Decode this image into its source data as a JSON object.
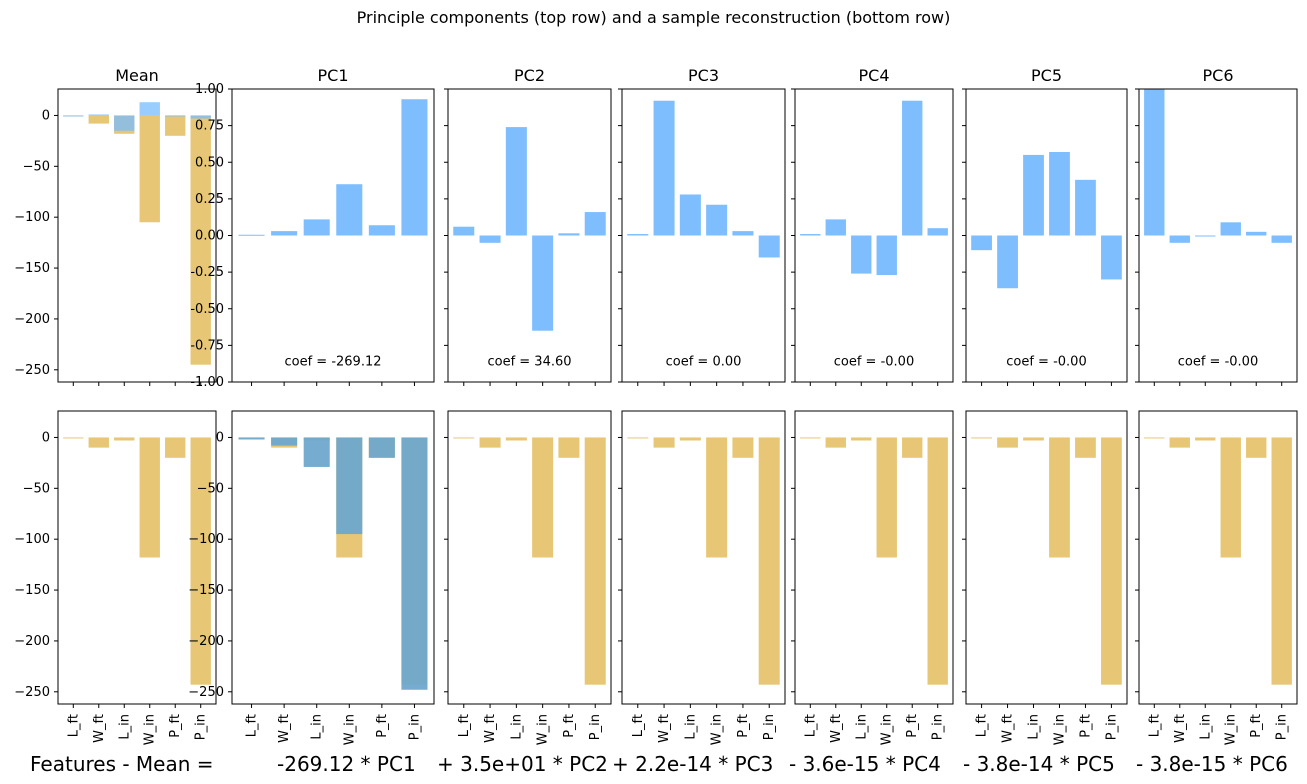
{
  "figure": {
    "suptitle": "Principle components (top row) and a sample reconstruction (bottom row)",
    "colors": {
      "pc_bar": "#77bbff",
      "mean_bar": "#e6c46e",
      "recon_bar": "#6fa8cc",
      "overlap_bar": "#a0a56c"
    }
  },
  "chart_data": [
    {
      "type": "bar",
      "title": "Mean",
      "categories": [
        "L_ft",
        "W_ft",
        "L_in",
        "W_in",
        "P_ft",
        "P_in"
      ],
      "ylim": [
        -262,
        26
      ],
      "yticks": [
        0,
        -50,
        -100,
        -150,
        -200,
        -250
      ],
      "series": [
        {
          "values": [
            -1,
            -8,
            -18,
            -105,
            -20,
            -245
          ]
        },
        {
          "values": [
            -1,
            1,
            -15,
            13,
            0,
            -3
          ]
        }
      ]
    },
    {
      "type": "bar",
      "title": "PC1",
      "categories": [
        "L_ft",
        "W_ft",
        "L_in",
        "W_in",
        "P_ft",
        "P_in"
      ],
      "ylim": [
        -1.0,
        1.0
      ],
      "yticks": [
        1.0,
        0.75,
        0.5,
        0.25,
        0.0,
        -0.25,
        -0.5,
        -0.75,
        -1.0
      ],
      "values": [
        0.005,
        0.03,
        0.11,
        0.35,
        0.07,
        0.93
      ],
      "annotation": "coef = -269.12"
    },
    {
      "type": "bar",
      "title": "PC2",
      "categories": [
        "L_ft",
        "W_ft",
        "L_in",
        "W_in",
        "P_ft",
        "P_in"
      ],
      "ylim": [
        -1.0,
        1.0
      ],
      "values": [
        0.06,
        -0.05,
        0.74,
        -0.65,
        0.015,
        0.16
      ],
      "annotation": "coef = 34.60"
    },
    {
      "type": "bar",
      "title": "PC3",
      "categories": [
        "L_ft",
        "W_ft",
        "L_in",
        "W_in",
        "P_ft",
        "P_in"
      ],
      "ylim": [
        -1.0,
        1.0
      ],
      "values": [
        0.01,
        0.92,
        0.28,
        0.21,
        0.03,
        -0.15
      ],
      "annotation": "coef = 0.00"
    },
    {
      "type": "bar",
      "title": "PC4",
      "categories": [
        "L_ft",
        "W_ft",
        "L_in",
        "W_in",
        "P_ft",
        "P_in"
      ],
      "ylim": [
        -1.0,
        1.0
      ],
      "values": [
        0.01,
        0.11,
        -0.26,
        -0.27,
        0.92,
        0.05
      ],
      "annotation": "coef = -0.00"
    },
    {
      "type": "bar",
      "title": "PC5",
      "categories": [
        "L_ft",
        "W_ft",
        "L_in",
        "W_in",
        "P_ft",
        "P_in"
      ],
      "ylim": [
        -1.0,
        1.0
      ],
      "values": [
        -0.1,
        -0.36,
        0.55,
        0.57,
        0.38,
        -0.3
      ],
      "annotation": "coef = -0.00"
    },
    {
      "type": "bar",
      "title": "PC6",
      "categories": [
        "L_ft",
        "W_ft",
        "L_in",
        "W_in",
        "P_ft",
        "P_in"
      ],
      "ylim": [
        -1.0,
        1.0
      ],
      "values": [
        1.0,
        -0.05,
        -0.005,
        0.09,
        0.025,
        -0.05
      ],
      "annotation": "coef = -0.00"
    },
    {
      "type": "bar",
      "title": "",
      "categories": [
        "L_ft",
        "W_ft",
        "L_in",
        "W_in",
        "P_ft",
        "P_in"
      ],
      "ylim": [
        -262,
        26
      ],
      "series": [
        {
          "values": [
            0,
            -10,
            -3,
            -118,
            -20,
            -243
          ]
        }
      ]
    },
    {
      "type": "bar",
      "title": "",
      "categories": [
        "L_ft",
        "W_ft",
        "L_in",
        "W_in",
        "P_ft",
        "P_in"
      ],
      "ylim": [
        -262,
        26
      ],
      "series": [
        {
          "values": [
            0,
            -10,
            -3,
            -118,
            -20,
            -243
          ]
        },
        {
          "values": [
            -2,
            -8,
            -29,
            -95,
            -20,
            -248
          ]
        }
      ]
    },
    {
      "type": "bar",
      "title": "",
      "categories": [
        "L_ft",
        "W_ft",
        "L_in",
        "W_in",
        "P_ft",
        "P_in"
      ],
      "ylim": [
        -262,
        26
      ],
      "series": [
        {
          "values": [
            0,
            -10,
            -3,
            -118,
            -20,
            -243
          ]
        }
      ]
    },
    {
      "type": "bar",
      "title": "",
      "categories": [
        "L_ft",
        "W_ft",
        "L_in",
        "W_in",
        "P_ft",
        "P_in"
      ],
      "ylim": [
        -262,
        26
      ],
      "series": [
        {
          "values": [
            0,
            -10,
            -3,
            -118,
            -20,
            -243
          ]
        }
      ]
    },
    {
      "type": "bar",
      "title": "",
      "categories": [
        "L_ft",
        "W_ft",
        "L_in",
        "W_in",
        "P_ft",
        "P_in"
      ],
      "ylim": [
        -262,
        26
      ],
      "series": [
        {
          "values": [
            0,
            -10,
            -3,
            -118,
            -20,
            -243
          ]
        }
      ]
    },
    {
      "type": "bar",
      "title": "",
      "categories": [
        "L_ft",
        "W_ft",
        "L_in",
        "W_in",
        "P_ft",
        "P_in"
      ],
      "ylim": [
        -262,
        26
      ],
      "series": [
        {
          "values": [
            0,
            -10,
            -3,
            -118,
            -20,
            -243
          ]
        }
      ]
    },
    {
      "type": "bar",
      "title": "",
      "categories": [
        "L_ft",
        "W_ft",
        "L_in",
        "W_in",
        "P_ft",
        "P_in"
      ],
      "ylim": [
        -262,
        26
      ],
      "series": [
        {
          "values": [
            0,
            -10,
            -3,
            -118,
            -20,
            -243
          ]
        }
      ]
    }
  ],
  "equation": [
    "Features - Mean =",
    "-269.12 * PC1",
    "+ 3.5e+01 * PC2",
    "+ 2.2e-14 * PC3",
    "- 3.6e-15 * PC4",
    "- 3.8e-14 * PC5",
    "- 3.8e-15 * PC6"
  ]
}
